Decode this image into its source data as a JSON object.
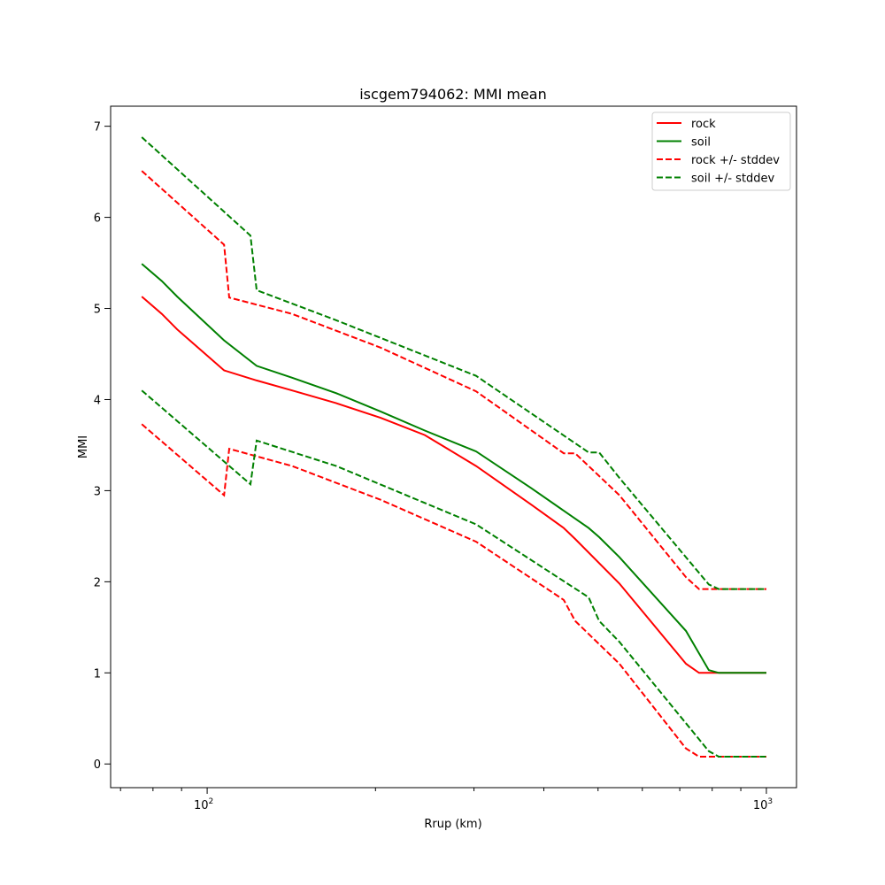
{
  "chart_data": {
    "type": "line",
    "title": "iscgem794062: MMI mean",
    "xlabel": "Rrup (km)",
    "ylabel": "MMI",
    "xscale": "log",
    "xlim": [
      67.2,
      1132
    ],
    "ylim": [
      -0.26,
      7.22
    ],
    "x_major_ticks": [
      {
        "value": 100,
        "base": "10",
        "exp": "2"
      },
      {
        "value": 1000,
        "base": "10",
        "exp": "3"
      }
    ],
    "x_minor_ticks": [
      70,
      80,
      90,
      200,
      300,
      400,
      500,
      600,
      700,
      800,
      900
    ],
    "y_ticks": [
      0,
      1,
      2,
      3,
      4,
      5,
      6,
      7
    ],
    "y_tick_labels": [
      "0",
      "1",
      "2",
      "3",
      "4",
      "5",
      "6",
      "7"
    ],
    "grid": false,
    "legend_position": "top-right",
    "series": [
      {
        "name": "rock",
        "color": "#ff0000",
        "dash": false,
        "points": [
          [
            76.4,
            5.13
          ],
          [
            83.0,
            4.94
          ],
          [
            88.4,
            4.77
          ],
          [
            107.2,
            4.32
          ],
          [
            122.6,
            4.21
          ],
          [
            141.9,
            4.1
          ],
          [
            170.2,
            3.96
          ],
          [
            204.2,
            3.8
          ],
          [
            245,
            3.61
          ],
          [
            302.7,
            3.27
          ],
          [
            379.3,
            2.85
          ],
          [
            434.2,
            2.59
          ],
          [
            455,
            2.47
          ],
          [
            546,
            1.98
          ],
          [
            718,
            1.1
          ],
          [
            758,
            1.0
          ],
          [
            1000,
            1.0
          ]
        ]
      },
      {
        "name": "soil",
        "color": "#008000",
        "dash": false,
        "points": [
          [
            76.4,
            5.49
          ],
          [
            83.0,
            5.3
          ],
          [
            88.4,
            5.13
          ],
          [
            107.2,
            4.65
          ],
          [
            122.6,
            4.37
          ],
          [
            141.9,
            4.24
          ],
          [
            170.2,
            4.07
          ],
          [
            204.2,
            3.87
          ],
          [
            245,
            3.66
          ],
          [
            302.7,
            3.43
          ],
          [
            379.3,
            3.03
          ],
          [
            480.9,
            2.59
          ],
          [
            502.3,
            2.49
          ],
          [
            546,
            2.27
          ],
          [
            718,
            1.46
          ],
          [
            789,
            1.03
          ],
          [
            822,
            1.0
          ],
          [
            1000,
            1.0
          ]
        ]
      },
      {
        "name": "rock +/- stddev",
        "color": "#ff0000",
        "dash": true,
        "points": [
          [
            76.4,
            6.51
          ],
          [
            107.2,
            5.7
          ],
          [
            109.5,
            5.12
          ],
          [
            141.9,
            4.94
          ],
          [
            204.2,
            4.57
          ],
          [
            302.7,
            4.09
          ],
          [
            434.2,
            3.41
          ],
          [
            455,
            3.41
          ],
          [
            546,
            2.95
          ],
          [
            718,
            2.05
          ],
          [
            758,
            1.92
          ],
          [
            1000,
            1.92
          ]
        ],
        "lower": [
          [
            76.4,
            3.73
          ],
          [
            107.2,
            2.95
          ],
          [
            109.5,
            3.46
          ],
          [
            141.9,
            3.27
          ],
          [
            204.2,
            2.9
          ],
          [
            302.7,
            2.44
          ],
          [
            434.2,
            1.8
          ],
          [
            455,
            1.57
          ],
          [
            546,
            1.1
          ],
          [
            718,
            0.17
          ],
          [
            758,
            0.08
          ],
          [
            1000,
            0.08
          ]
        ]
      },
      {
        "name": "soil +/- stddev",
        "color": "#008000",
        "dash": true,
        "points": [
          [
            76.4,
            6.88
          ],
          [
            119.5,
            5.8
          ],
          [
            122.6,
            5.2
          ],
          [
            170.2,
            4.87
          ],
          [
            302.7,
            4.26
          ],
          [
            480.9,
            3.42
          ],
          [
            502.3,
            3.42
          ],
          [
            546,
            3.14
          ],
          [
            789,
            1.97
          ],
          [
            822,
            1.92
          ],
          [
            1000,
            1.92
          ]
        ],
        "lower": [
          [
            76.4,
            4.1
          ],
          [
            119.5,
            3.07
          ],
          [
            122.6,
            3.55
          ],
          [
            170.2,
            3.27
          ],
          [
            302.7,
            2.63
          ],
          [
            480.9,
            1.83
          ],
          [
            502.3,
            1.57
          ],
          [
            546,
            1.34
          ],
          [
            789,
            0.14
          ],
          [
            822,
            0.08
          ],
          [
            1000,
            0.08
          ]
        ]
      }
    ]
  }
}
